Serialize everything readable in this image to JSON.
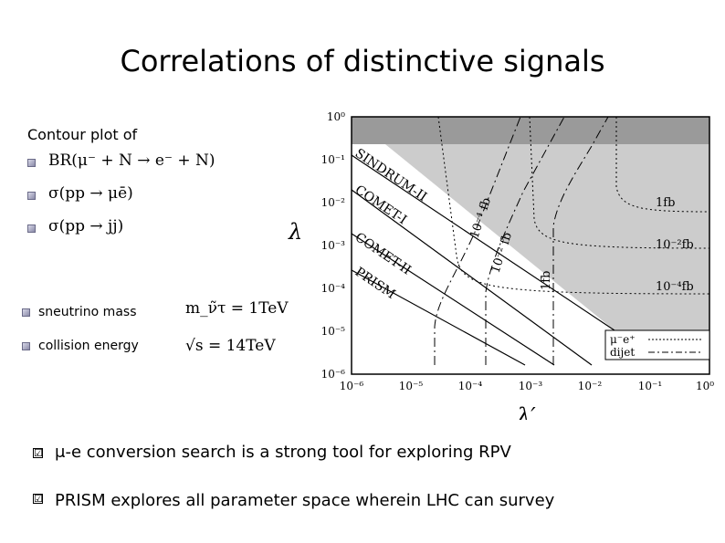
{
  "title": "Correlations of distinctive signals",
  "contour_label": "Contour plot of",
  "observables": [
    {
      "label": "BR(μ⁻ + N → e⁻ + N)"
    },
    {
      "label": "σ(pp → μē)"
    },
    {
      "label": "σ(pp → jj)"
    }
  ],
  "params": [
    {
      "name": "sneutrino mass",
      "value": "m_ν̃τ = 1TeV"
    },
    {
      "name": "collision energy",
      "value": "√s = 14TeV"
    }
  ],
  "chart_data": {
    "type": "line",
    "xlabel": "λ′",
    "ylabel": "λ",
    "xscale": "log",
    "yscale": "log",
    "xlim": [
      1e-06,
      1
    ],
    "ylim": [
      1e-06,
      1
    ],
    "x_ticks": [
      "10⁻⁶",
      "10⁻⁵",
      "10⁻⁴",
      "10⁻³",
      "10⁻²",
      "10⁻¹",
      "10⁰"
    ],
    "y_ticks": [
      "10⁰",
      "10⁻¹",
      "10⁻²",
      "10⁻³",
      "10⁻⁴",
      "10⁻⁵",
      "10⁻⁶"
    ],
    "excluded_regions": [
      {
        "name": "SINDRUM-II",
        "color": "#cccccc"
      },
      {
        "name": "top band",
        "color": "#9a9a9a"
      }
    ],
    "limit_lines": [
      {
        "name": "SINDRUM-II",
        "points": [
          [
            1e-06,
            0.1
          ],
          [
            0.01,
            1e-05
          ]
        ]
      },
      {
        "name": "COMET-I",
        "points": [
          [
            1e-06,
            0.01
          ],
          [
            0.03,
            1e-06
          ]
        ]
      },
      {
        "name": "COMET-II",
        "points": [
          [
            1e-06,
            0.001
          ],
          [
            0.003,
            1e-06
          ]
        ]
      },
      {
        "name": "PRISM",
        "points": [
          [
            1e-06,
            0.0001
          ],
          [
            0.001,
            1e-06
          ]
        ]
      }
    ],
    "emu_contours": [
      {
        "label": "10⁻⁴ fb",
        "x_vertical": 0.0001
      },
      {
        "label": "10⁻² fb",
        "x_vertical": 0.001
      },
      {
        "label": "1fb",
        "x_vertical": 0.01
      }
    ],
    "dijet_contours": [
      {
        "label": "1fb",
        "y_horizontal": 0.01
      },
      {
        "label": "10⁻²fb",
        "y_horizontal": 0.001
      },
      {
        "label": "10⁻⁴fb",
        "y_horizontal": 0.0001
      }
    ],
    "legend": [
      {
        "label": "μ⁻e⁺",
        "style": "dotted"
      },
      {
        "label": "dijet",
        "style": "dash-dot"
      }
    ],
    "legend_position": "bottom-right"
  },
  "conclusions": [
    {
      "mark": "☑",
      "text": "μ-e conversion search is a strong tool for exploring RPV"
    },
    {
      "mark": "☑",
      "text": "PRISM explores all parameter space wherein LHC can survey"
    }
  ],
  "colors": {
    "band_dark": "#9a9a9a",
    "band_light": "#cccccc",
    "frame": "#000000"
  }
}
